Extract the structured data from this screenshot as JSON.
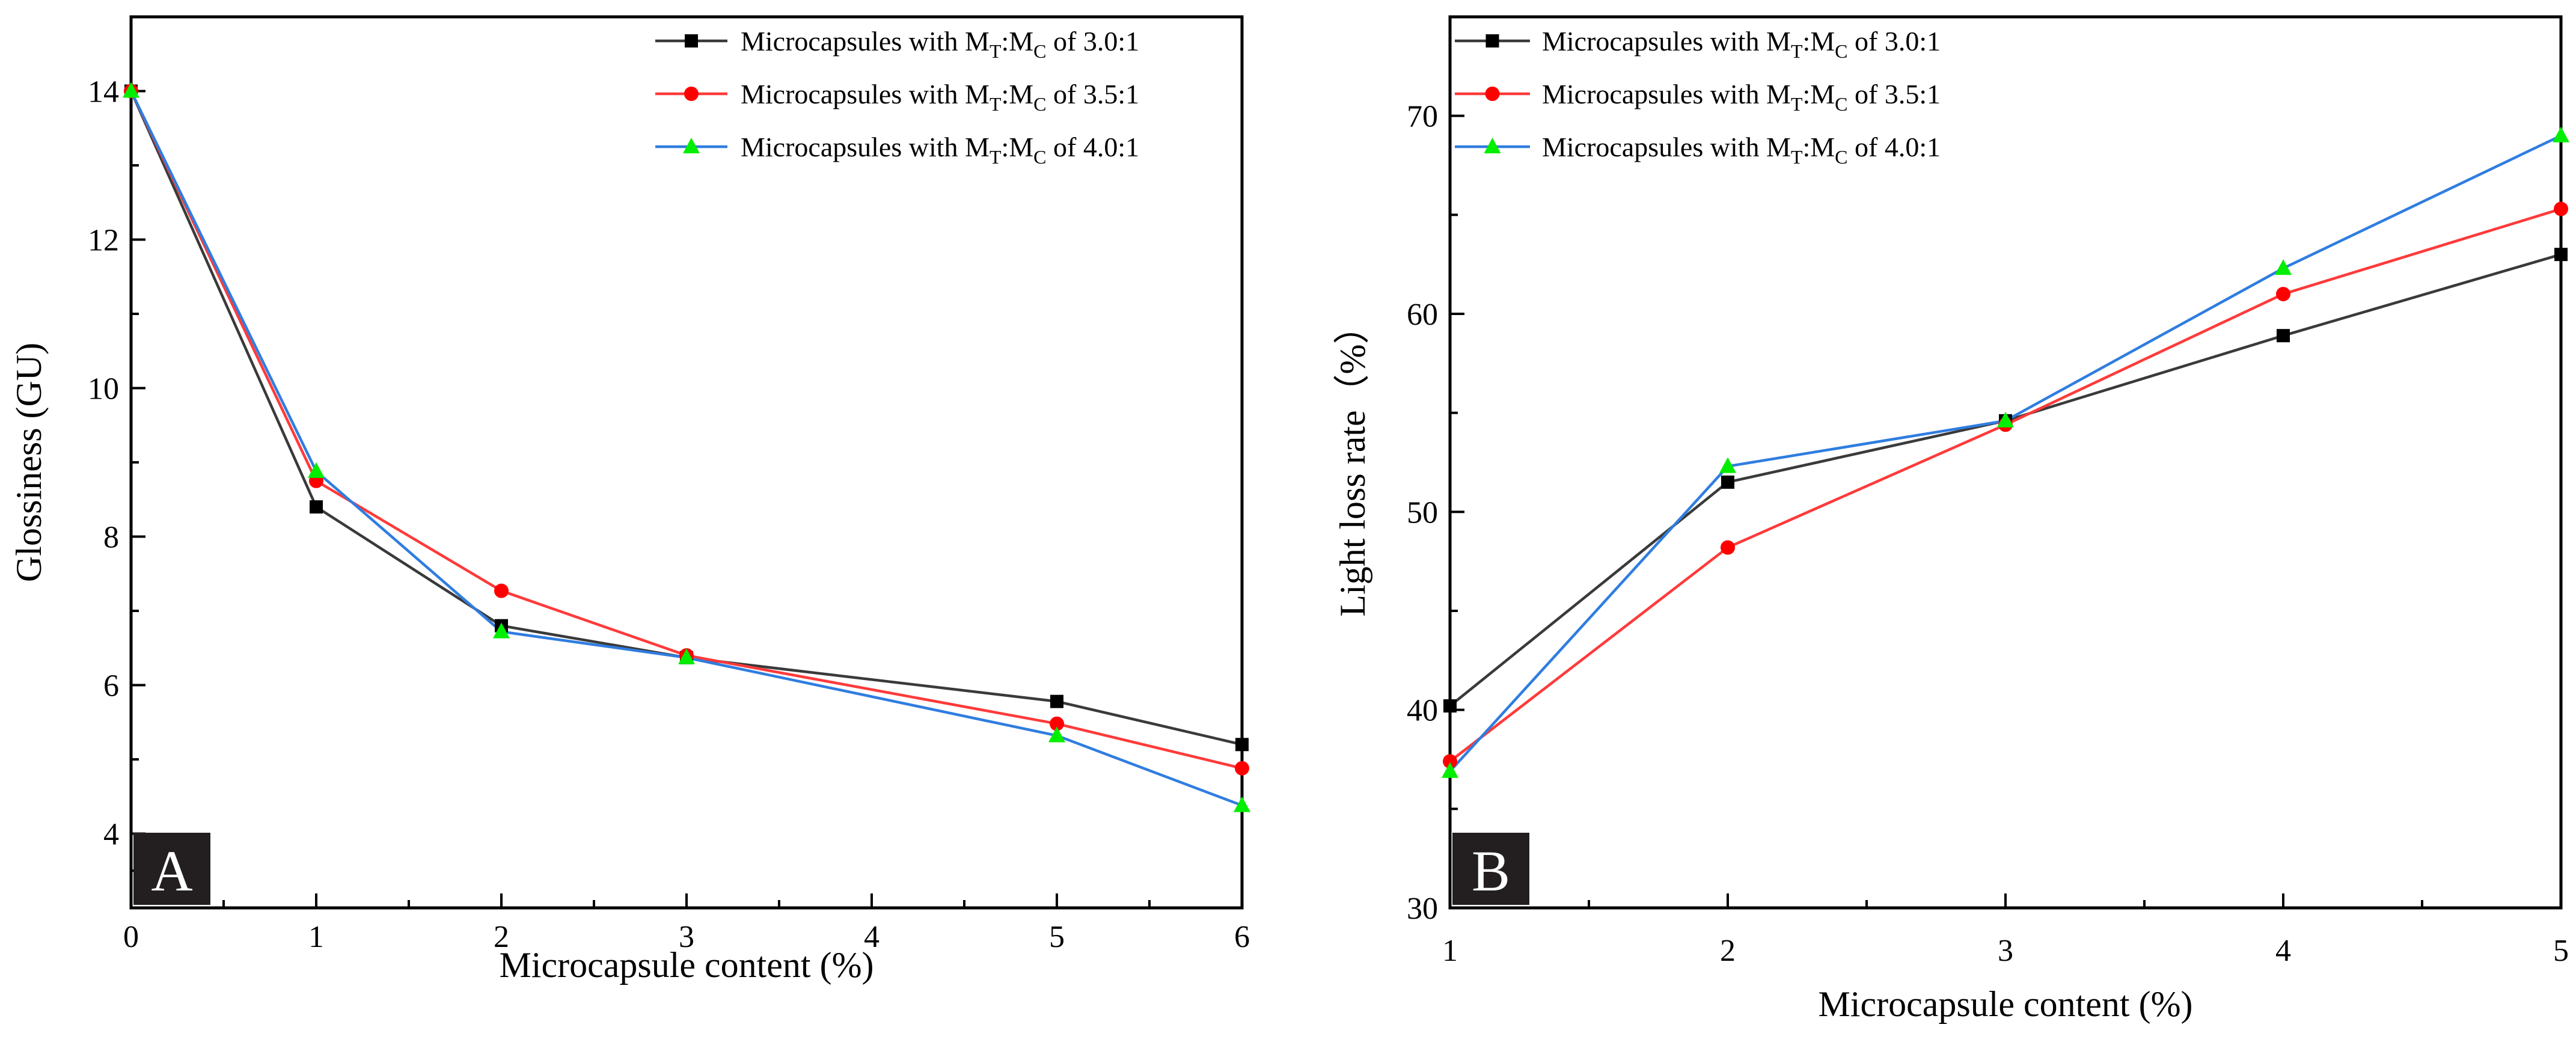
{
  "chart_data": [
    {
      "panel": "A",
      "type": "line",
      "xlabel": "Microcapsule content (%)",
      "ylabel": "Glossiness (GU)",
      "xlim": [
        0,
        6
      ],
      "ylim": [
        3,
        15
      ],
      "x_ticks": [
        0,
        1,
        2,
        3,
        4,
        5,
        6
      ],
      "y_ticks": [
        4,
        6,
        8,
        10,
        12,
        14
      ],
      "legend_position": "top-right",
      "x": [
        0,
        1,
        2,
        3,
        5,
        6
      ],
      "series": [
        {
          "name": "Microcapsules with MT:MC of 3.0:1",
          "legend_prefix": "Microcapsules with M",
          "sub1": "T",
          "mid": ":M",
          "sub2": "C",
          "legend_suffix": " of 3.0:1",
          "line_color": "#3a3a3a",
          "marker_color": "#000000",
          "marker": "square",
          "values": [
            14.0,
            8.4,
            6.8,
            6.37,
            5.78,
            5.2
          ]
        },
        {
          "name": "Microcapsules with MT:MC of 3.5:1",
          "legend_prefix": "Microcapsules with M",
          "sub1": "T",
          "mid": ":M",
          "sub2": "C",
          "legend_suffix": " of 3.5:1",
          "line_color": "#ff3a3a",
          "marker_color": "#ff0000",
          "marker": "circle",
          "values": [
            14.0,
            8.75,
            7.27,
            6.4,
            5.48,
            4.88
          ]
        },
        {
          "name": "Microcapsules with MT:MC of 4.0:1",
          "legend_prefix": "Microcapsules with M",
          "sub1": "T",
          "mid": ":M",
          "sub2": "C",
          "legend_suffix": " of 4.0:1",
          "line_color": "#2f7de0",
          "marker_color": "#00ee00",
          "marker": "triangle",
          "values": [
            14.0,
            8.88,
            6.72,
            6.37,
            5.32,
            4.38
          ]
        }
      ]
    },
    {
      "panel": "B",
      "type": "line",
      "xlabel": "Microcapsule content (%)",
      "ylabel": "Light loss rate（%）",
      "xlim": [
        1,
        5
      ],
      "ylim": [
        30,
        75
      ],
      "x_ticks": [
        1,
        2,
        3,
        4,
        5
      ],
      "y_ticks": [
        30,
        40,
        50,
        60,
        70
      ],
      "legend_position": "top-left",
      "x": [
        1,
        2,
        3,
        4,
        5
      ],
      "series": [
        {
          "name": "Microcapsules with MT:MC of 3.0:1",
          "legend_prefix": "Microcapsules with M",
          "sub1": "T",
          "mid": ":M",
          "sub2": "C",
          "legend_suffix": " of 3.0:1",
          "line_color": "#3a3a3a",
          "marker_color": "#000000",
          "marker": "square",
          "values": [
            40.2,
            51.5,
            54.6,
            58.9,
            63.0
          ]
        },
        {
          "name": "Microcapsules with MT:MC of 3.5:1",
          "legend_prefix": "Microcapsules with M",
          "sub1": "T",
          "mid": ":M",
          "sub2": "C",
          "legend_suffix": " of 3.5:1",
          "line_color": "#ff3a3a",
          "marker_color": "#ff0000",
          "marker": "circle",
          "values": [
            37.4,
            48.2,
            54.4,
            61.0,
            65.3
          ]
        },
        {
          "name": "Microcapsules with MT:MC of 4.0:1",
          "legend_prefix": "Microcapsules with M",
          "sub1": "T",
          "mid": ":M",
          "sub2": "C",
          "legend_suffix": " of 4.0:1",
          "line_color": "#2f7de0",
          "marker_color": "#00ee00",
          "marker": "triangle",
          "values": [
            36.9,
            52.3,
            54.6,
            62.3,
            69.0
          ]
        }
      ]
    }
  ]
}
